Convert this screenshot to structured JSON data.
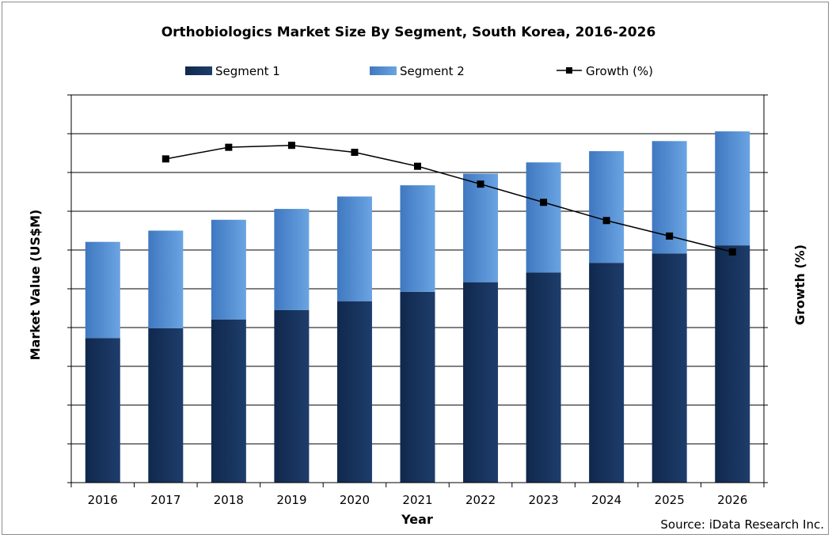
{
  "chart_data": {
    "type": "bar",
    "stacked": true,
    "title": "Orthobiologics Market Size By Segment, South Korea, 2016-2026",
    "xlabel": "Year",
    "ylabel": "Market Value (US$M)",
    "y2label": "Growth (%)",
    "categories": [
      "2016",
      "2017",
      "2018",
      "2019",
      "2020",
      "2021",
      "2022",
      "2023",
      "2024",
      "2025",
      "2026"
    ],
    "series": [
      {
        "name": "Segment 1",
        "kind": "bar",
        "color": "#1a3560",
        "values": [
          3.73,
          3.98,
          4.21,
          4.45,
          4.68,
          4.92,
          5.17,
          5.42,
          5.67,
          5.91,
          6.12
        ]
      },
      {
        "name": "Segment 2",
        "kind": "bar",
        "color": "#5a94d6",
        "values": [
          2.48,
          2.52,
          2.57,
          2.61,
          2.7,
          2.75,
          2.8,
          2.84,
          2.88,
          2.9,
          2.94
        ]
      },
      {
        "name": "Growth (%)",
        "kind": "line",
        "axis": "right",
        "color": "#000000",
        "values": [
          null,
          8.35,
          8.65,
          8.7,
          8.52,
          8.16,
          7.7,
          7.23,
          6.76,
          6.36,
          5.95
        ]
      }
    ],
    "ylim": [
      0,
      10
    ],
    "y2lim": [
      0,
      10
    ],
    "yticks_labeled": false,
    "grid": true,
    "legend_position": "top",
    "source": "Source: iData Research Inc."
  }
}
